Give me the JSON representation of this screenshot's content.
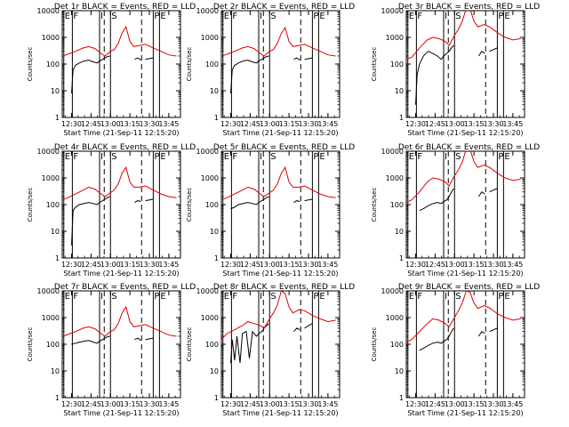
{
  "figure": {
    "start_time_label": "Start Time (21-Sep-11 12:15:20)",
    "ylabel": "Counts/sec",
    "legend_text": "BLACK = Events, RED = LLD",
    "colors": {
      "events": "#000000",
      "lld": "#e00000",
      "axis": "#000000",
      "background": "#ffffff"
    },
    "x_ticks": [
      "12:30",
      "12:45",
      "13:00",
      "13:15",
      "13:30",
      "13:45"
    ],
    "y_ticks": [
      "1",
      "10",
      "100",
      "1000",
      "10000"
    ],
    "markers": [
      {
        "label": "E",
        "t": 12.4
      },
      {
        "label": "F",
        "t": 12.51
      },
      {
        "label": "I",
        "t": 12.86
      },
      {
        "label": "S",
        "t": 13.0
      },
      {
        "label": "P",
        "t": 13.55
      },
      {
        "label": "E",
        "t": 13.63
      }
    ],
    "dashed_markers_t": [
      12.92,
      13.4
    ]
  },
  "chart_data": [
    {
      "title": "Det 1r",
      "type": "line",
      "xlim": [
        12.38,
        13.9
      ],
      "ylim": [
        1,
        10000
      ],
      "yscale": "log",
      "series": [
        {
          "name": "Events",
          "x": [
            12.5,
            12.52,
            12.55,
            12.6,
            12.66,
            12.72,
            12.78,
            12.83,
            12.86,
            12.9,
            12.93,
            12.96,
            12.99,
            null,
            13.31,
            13.35,
            13.39,
            null,
            13.45,
            13.5,
            13.55
          ],
          "y": [
            8,
            60,
            90,
            110,
            130,
            140,
            120,
            110,
            130,
            150,
            170,
            190,
            200,
            null,
            150,
            170,
            140,
            null,
            150,
            160,
            170
          ]
        },
        {
          "name": "LLD",
          "x": [
            12.38,
            12.45,
            12.55,
            12.65,
            12.72,
            12.8,
            12.88,
            12.93,
            13.0,
            13.05,
            13.1,
            13.15,
            13.2,
            13.25,
            13.3,
            13.38,
            13.45,
            13.55,
            13.65,
            13.75,
            13.85
          ],
          "y": [
            200,
            230,
            300,
            400,
            450,
            380,
            250,
            200,
            300,
            350,
            600,
            1500,
            2500,
            700,
            450,
            500,
            550,
            400,
            300,
            220,
            200
          ]
        }
      ]
    },
    {
      "title": "Det 2r",
      "type": "line",
      "xlim": [
        12.38,
        13.9
      ],
      "ylim": [
        1,
        10000
      ],
      "yscale": "log",
      "series": [
        {
          "name": "Events",
          "x": [
            12.5,
            12.52,
            12.55,
            12.6,
            12.66,
            12.72,
            12.78,
            12.83,
            12.86,
            12.9,
            12.93,
            12.96,
            12.99,
            null,
            13.31,
            13.35,
            13.39,
            null,
            13.45,
            13.5,
            13.55
          ],
          "y": [
            8,
            60,
            90,
            110,
            130,
            140,
            120,
            110,
            130,
            150,
            170,
            190,
            200,
            null,
            150,
            170,
            140,
            null,
            150,
            160,
            170
          ]
        },
        {
          "name": "LLD",
          "x": [
            12.38,
            12.45,
            12.55,
            12.65,
            12.72,
            12.8,
            12.88,
            12.93,
            13.0,
            13.05,
            13.1,
            13.15,
            13.2,
            13.25,
            13.3,
            13.38,
            13.45,
            13.55,
            13.65,
            13.75,
            13.85
          ],
          "y": [
            200,
            230,
            300,
            400,
            450,
            380,
            250,
            200,
            300,
            350,
            600,
            1400,
            2300,
            700,
            450,
            500,
            550,
            400,
            300,
            220,
            200
          ]
        }
      ]
    },
    {
      "title": "Det 3r",
      "type": "line",
      "xlim": [
        12.38,
        13.9
      ],
      "ylim": [
        1,
        10000
      ],
      "yscale": "log",
      "series": [
        {
          "name": "Events",
          "x": [
            12.5,
            12.52,
            12.55,
            12.6,
            12.66,
            12.72,
            12.78,
            12.83,
            12.86,
            12.9,
            12.93,
            12.96,
            12.99,
            null,
            13.31,
            13.35,
            13.39,
            null,
            13.45,
            13.5,
            13.55
          ],
          "y": [
            3,
            40,
            100,
            200,
            300,
            250,
            200,
            150,
            200,
            250,
            300,
            400,
            500,
            null,
            200,
            300,
            250,
            null,
            300,
            350,
            400
          ]
        },
        {
          "name": "LLD",
          "x": [
            12.38,
            12.45,
            12.55,
            12.65,
            12.72,
            12.8,
            12.88,
            12.93,
            13.0,
            13.05,
            13.1,
            13.15,
            13.2,
            13.25,
            13.3,
            13.38,
            13.45,
            13.55,
            13.65,
            13.75,
            13.85
          ],
          "y": [
            150,
            180,
            400,
            800,
            1000,
            900,
            700,
            500,
            1200,
            2000,
            4000,
            12000,
            12000,
            4000,
            2500,
            3000,
            2500,
            1500,
            1000,
            800,
            900
          ]
        }
      ]
    },
    {
      "title": "Det 4r",
      "type": "line",
      "xlim": [
        12.38,
        13.9
      ],
      "ylim": [
        1,
        10000
      ],
      "yscale": "log",
      "series": [
        {
          "name": "Events",
          "x": [
            12.5,
            12.52,
            12.55,
            12.6,
            12.66,
            12.72,
            12.78,
            12.83,
            12.86,
            12.9,
            12.93,
            12.96,
            12.99,
            null,
            13.31,
            13.35,
            13.39,
            null,
            13.45,
            13.5,
            13.55
          ],
          "y": [
            3,
            60,
            80,
            100,
            110,
            120,
            110,
            100,
            120,
            140,
            160,
            180,
            200,
            null,
            120,
            140,
            130,
            null,
            140,
            150,
            160
          ]
        },
        {
          "name": "LLD",
          "x": [
            12.38,
            12.45,
            12.55,
            12.65,
            12.72,
            12.8,
            12.88,
            12.93,
            13.0,
            13.05,
            13.1,
            13.15,
            13.2,
            13.25,
            13.3,
            13.38,
            13.45,
            13.55,
            13.65,
            13.75,
            13.85
          ],
          "y": [
            150,
            180,
            250,
            350,
            450,
            380,
            250,
            200,
            280,
            350,
            600,
            1500,
            2500,
            700,
            450,
            450,
            500,
            350,
            250,
            200,
            180
          ]
        }
      ]
    },
    {
      "title": "Det 5r",
      "type": "line",
      "xlim": [
        12.38,
        13.9
      ],
      "ylim": [
        1,
        10000
      ],
      "yscale": "log",
      "series": [
        {
          "name": "Events",
          "x": [
            12.5,
            12.55,
            12.6,
            12.66,
            12.72,
            12.78,
            12.83,
            12.86,
            12.9,
            12.93,
            12.96,
            12.99,
            null,
            13.31,
            13.35,
            13.39,
            null,
            13.45,
            13.5,
            13.55
          ],
          "y": [
            70,
            80,
            100,
            110,
            120,
            110,
            100,
            120,
            140,
            160,
            180,
            200,
            null,
            120,
            140,
            130,
            null,
            140,
            150,
            160
          ]
        },
        {
          "name": "LLD",
          "x": [
            12.38,
            12.45,
            12.55,
            12.65,
            12.72,
            12.8,
            12.88,
            12.93,
            13.0,
            13.05,
            13.1,
            13.15,
            13.2,
            13.25,
            13.3,
            13.38,
            13.45,
            13.55,
            13.65,
            13.75,
            13.85
          ],
          "y": [
            150,
            180,
            250,
            350,
            450,
            380,
            250,
            200,
            280,
            350,
            600,
            1500,
            2500,
            700,
            450,
            450,
            500,
            350,
            250,
            200,
            180
          ]
        }
      ]
    },
    {
      "title": "Det 6r",
      "type": "line",
      "xlim": [
        12.38,
        13.9
      ],
      "ylim": [
        1,
        10000
      ],
      "yscale": "log",
      "series": [
        {
          "name": "Events",
          "x": [
            12.55,
            12.6,
            12.66,
            12.72,
            12.78,
            12.83,
            12.86,
            12.9,
            12.93,
            12.96,
            12.99,
            null,
            13.31,
            13.35,
            13.39,
            null,
            13.45,
            13.5,
            13.55
          ],
          "y": [
            60,
            70,
            90,
            110,
            120,
            110,
            130,
            150,
            200,
            300,
            400,
            null,
            200,
            300,
            250,
            null,
            300,
            350,
            400
          ]
        },
        {
          "name": "LLD",
          "x": [
            12.38,
            12.45,
            12.55,
            12.65,
            12.72,
            12.8,
            12.88,
            12.93,
            13.0,
            13.05,
            13.1,
            13.15,
            13.2,
            13.25,
            13.3,
            13.38,
            13.45,
            13.55,
            13.65,
            13.75,
            13.85
          ],
          "y": [
            120,
            150,
            300,
            700,
            1000,
            900,
            700,
            500,
            1200,
            2000,
            4000,
            12000,
            12000,
            4000,
            2500,
            3000,
            2500,
            1500,
            1000,
            800,
            900
          ]
        }
      ]
    },
    {
      "title": "Det 7r",
      "type": "line",
      "xlim": [
        12.38,
        13.9
      ],
      "ylim": [
        1,
        10000
      ],
      "yscale": "log",
      "series": [
        {
          "name": "Events",
          "x": [
            12.5,
            12.55,
            12.6,
            12.66,
            12.72,
            12.78,
            12.83,
            12.86,
            12.9,
            12.93,
            12.96,
            12.99,
            null,
            13.31,
            13.35,
            13.39,
            null,
            13.45,
            13.5,
            13.55
          ],
          "y": [
            100,
            110,
            120,
            130,
            140,
            120,
            110,
            130,
            150,
            170,
            190,
            200,
            null,
            150,
            170,
            140,
            null,
            150,
            160,
            170
          ]
        },
        {
          "name": "LLD",
          "x": [
            12.38,
            12.45,
            12.55,
            12.65,
            12.72,
            12.8,
            12.88,
            12.93,
            13.0,
            13.05,
            13.1,
            13.15,
            13.2,
            13.25,
            13.3,
            13.38,
            13.45,
            13.55,
            13.65,
            13.75,
            13.85
          ],
          "y": [
            200,
            230,
            300,
            400,
            450,
            380,
            250,
            200,
            300,
            350,
            600,
            1500,
            2500,
            700,
            450,
            500,
            550,
            400,
            300,
            220,
            200
          ]
        }
      ]
    },
    {
      "title": "Det 8r",
      "type": "line",
      "xlim": [
        12.38,
        13.9
      ],
      "ylim": [
        1,
        10000
      ],
      "yscale": "log",
      "series": [
        {
          "name": "Events",
          "x": [
            12.5,
            12.52,
            12.55,
            12.58,
            12.62,
            12.65,
            12.7,
            12.74,
            12.78,
            12.83,
            12.86,
            12.9,
            12.93,
            12.96,
            12.99,
            null,
            13.31,
            13.35,
            13.39,
            null,
            13.45,
            13.5,
            13.55
          ],
          "y": [
            20,
            150,
            25,
            200,
            20,
            250,
            300,
            30,
            300,
            200,
            250,
            300,
            400,
            500,
            600,
            null,
            300,
            400,
            350,
            null,
            400,
            500,
            600
          ]
        },
        {
          "name": "LLD",
          "x": [
            12.38,
            12.45,
            12.55,
            12.65,
            12.72,
            12.8,
            12.88,
            12.93,
            13.0,
            13.05,
            13.1,
            13.15,
            13.2,
            13.25,
            13.3,
            13.38,
            13.45,
            13.55,
            13.65,
            13.75,
            13.85
          ],
          "y": [
            150,
            250,
            350,
            500,
            700,
            600,
            500,
            400,
            900,
            1500,
            3000,
            10000,
            8000,
            2500,
            1500,
            2000,
            1800,
            1200,
            900,
            700,
            800
          ]
        }
      ]
    },
    {
      "title": "Det 9r",
      "type": "line",
      "xlim": [
        12.38,
        13.9
      ],
      "ylim": [
        1,
        10000
      ],
      "yscale": "log",
      "series": [
        {
          "name": "Events",
          "x": [
            12.55,
            12.6,
            12.66,
            12.72,
            12.78,
            12.83,
            12.86,
            12.9,
            12.93,
            12.96,
            12.99,
            null,
            13.31,
            13.35,
            13.39,
            null,
            13.45,
            13.5,
            13.55
          ],
          "y": [
            60,
            70,
            90,
            110,
            120,
            110,
            130,
            150,
            200,
            300,
            400,
            null,
            200,
            300,
            250,
            null,
            300,
            350,
            400
          ]
        },
        {
          "name": "LLD",
          "x": [
            12.38,
            12.45,
            12.55,
            12.65,
            12.72,
            12.8,
            12.88,
            12.93,
            13.0,
            13.05,
            13.1,
            13.15,
            13.2,
            13.25,
            13.3,
            13.38,
            13.45,
            13.55,
            13.65,
            13.75,
            13.85
          ],
          "y": [
            120,
            150,
            300,
            600,
            900,
            800,
            600,
            450,
            1000,
            1800,
            3500,
            10000,
            9000,
            3500,
            2200,
            2800,
            2300,
            1400,
            1000,
            800,
            900
          ]
        }
      ]
    }
  ]
}
